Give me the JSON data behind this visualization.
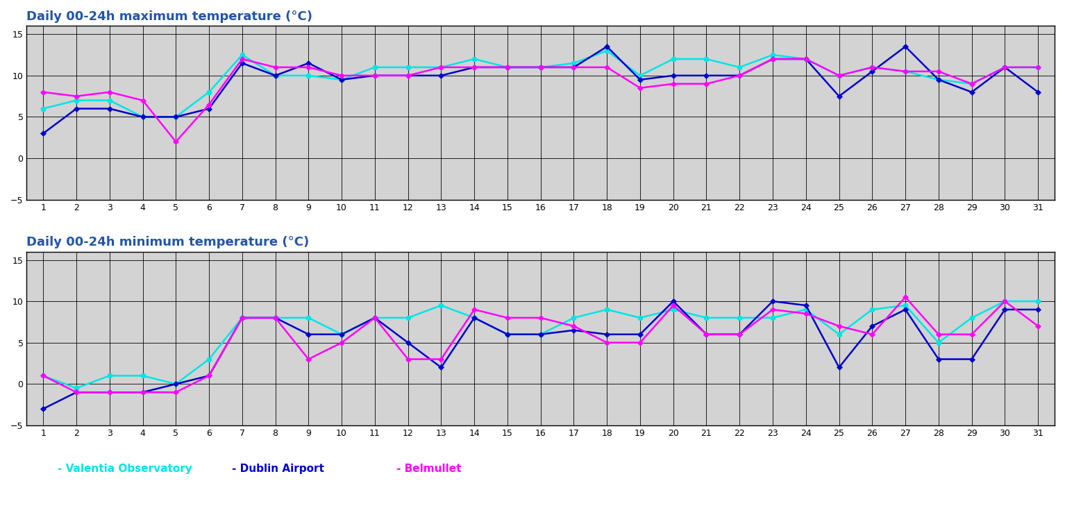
{
  "title_max": "Daily 00-24h maximum temperature (°C)",
  "title_min": "Daily 00-24h minimum temperature (°C)",
  "days": [
    1,
    2,
    3,
    4,
    5,
    6,
    7,
    8,
    9,
    10,
    11,
    12,
    13,
    14,
    15,
    16,
    17,
    18,
    19,
    20,
    21,
    22,
    23,
    24,
    25,
    26,
    27,
    28,
    29,
    30,
    31
  ],
  "max_valentia": [
    6,
    7,
    7,
    5,
    5,
    8,
    12.5,
    10,
    10,
    9.5,
    11,
    11,
    11,
    12,
    11,
    11,
    11.5,
    13,
    10,
    12,
    12,
    11,
    12.5,
    12,
    10,
    11,
    10.5,
    9.5,
    9,
    11,
    11
  ],
  "max_dublin": [
    3,
    6,
    6,
    5,
    5,
    6,
    11.5,
    10,
    11.5,
    9.5,
    10,
    10,
    10,
    11,
    11,
    11,
    11,
    13.5,
    9.5,
    10,
    10,
    10,
    12,
    12,
    7.5,
    10.5,
    13.5,
    9.5,
    8,
    11,
    8
  ],
  "max_belmullet": [
    8,
    7.5,
    8,
    7,
    2,
    6.5,
    12,
    11,
    11,
    10,
    10,
    10,
    11,
    11,
    11,
    11,
    11,
    11,
    8.5,
    9,
    9,
    10,
    12,
    12,
    10,
    11,
    10.5,
    10.5,
    9,
    11,
    11
  ],
  "min_valentia": [
    1,
    -0.5,
    1,
    1,
    0,
    3,
    8,
    8,
    8,
    6,
    8,
    8,
    9.5,
    8,
    6,
    6,
    8,
    9,
    8,
    9,
    8,
    8,
    8,
    9,
    6,
    9,
    9.5,
    5,
    8,
    10,
    10
  ],
  "min_dublin": [
    -3,
    -1,
    -1,
    -1,
    0,
    1,
    8,
    8,
    6,
    6,
    8,
    5,
    2,
    8,
    6,
    6,
    6.5,
    6,
    6,
    10,
    6,
    6,
    10,
    9.5,
    2,
    7,
    9,
    3,
    3,
    9,
    9
  ],
  "min_belmullet": [
    1,
    -1,
    -1,
    -1,
    -1,
    1,
    8,
    8,
    3,
    5,
    8,
    3,
    3,
    9,
    8,
    8,
    7,
    5,
    5,
    9.5,
    6,
    6,
    9,
    8.5,
    7,
    6,
    10.5,
    6,
    6,
    10,
    7
  ],
  "color_valentia": "#00e5e5",
  "color_dublin": "#0000cc",
  "color_belmullet": "#ff00ff",
  "bg_color": "#d3d3d3",
  "legend_labels": [
    "- Valentia Observatory",
    "- Dublin Airport",
    "- Belmullet"
  ],
  "legend_colors": [
    "#00e5e5",
    "#0000cc",
    "#ff00ff"
  ]
}
